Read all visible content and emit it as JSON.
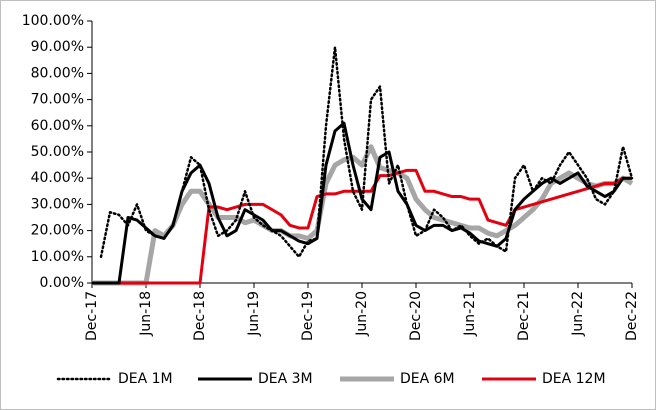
{
  "chart_data": {
    "type": "line",
    "x": [
      "2017-12",
      "2018-01",
      "2018-02",
      "2018-03",
      "2018-04",
      "2018-05",
      "2018-06",
      "2018-07",
      "2018-08",
      "2018-09",
      "2018-10",
      "2018-11",
      "2018-12",
      "2019-01",
      "2019-02",
      "2019-03",
      "2019-04",
      "2019-05",
      "2019-06",
      "2019-07",
      "2019-08",
      "2019-09",
      "2019-10",
      "2019-11",
      "2019-12",
      "2020-01",
      "2020-02",
      "2020-03",
      "2020-04",
      "2020-05",
      "2020-06",
      "2020-07",
      "2020-08",
      "2020-09",
      "2020-10",
      "2020-11",
      "2020-12",
      "2021-01",
      "2021-02",
      "2021-03",
      "2021-04",
      "2021-05",
      "2021-06",
      "2021-07",
      "2021-08",
      "2021-09",
      "2021-10",
      "2021-11",
      "2021-12",
      "2022-01",
      "2022-02",
      "2022-03",
      "2022-04",
      "2022-05",
      "2022-06",
      "2022-07",
      "2022-08",
      "2022-09",
      "2022-10",
      "2022-11",
      "2022-12"
    ],
    "series": [
      {
        "name": "DEA 1M",
        "color": "#000000",
        "dash": "dotted",
        "width": 2.5,
        "values": [
          null,
          10,
          27,
          26,
          22,
          30,
          20,
          18,
          17,
          22,
          35,
          48,
          45,
          28,
          18,
          20,
          24,
          35,
          25,
          22,
          20,
          18,
          14,
          10,
          16,
          17,
          60,
          90,
          55,
          35,
          28,
          70,
          75,
          38,
          45,
          30,
          18,
          20,
          28,
          25,
          20,
          22,
          18,
          15,
          17,
          14,
          12,
          40,
          45,
          35,
          40,
          38,
          45,
          50,
          45,
          40,
          32,
          30,
          35,
          52,
          40
        ]
      },
      {
        "name": "DEA 3M",
        "color": "#000000",
        "dash": "solid",
        "width": 3,
        "values": [
          0,
          0,
          0,
          0,
          25,
          24,
          21,
          18,
          17,
          22,
          35,
          42,
          45,
          38,
          25,
          18,
          20,
          28,
          26,
          24,
          20,
          20,
          18,
          16,
          15,
          17,
          45,
          58,
          61,
          45,
          32,
          28,
          48,
          50,
          35,
          30,
          22,
          20,
          22,
          22,
          20,
          21,
          19,
          16,
          15,
          14,
          17,
          28,
          32,
          35,
          38,
          40,
          38,
          40,
          42,
          37,
          35,
          33,
          35,
          40,
          40
        ]
      },
      {
        "name": "DEA 6M",
        "color": "#a6a6a6",
        "dash": "solid",
        "width": 5,
        "values": [
          0,
          0,
          0,
          0,
          0,
          0,
          0,
          20,
          18,
          22,
          30,
          35,
          35,
          30,
          25,
          25,
          25,
          23,
          24,
          22,
          20,
          20,
          18,
          18,
          17,
          20,
          38,
          45,
          47,
          48,
          45,
          52,
          44,
          43,
          42,
          40,
          32,
          28,
          25,
          24,
          23,
          22,
          21,
          21,
          19,
          18,
          20,
          22,
          25,
          28,
          32,
          38,
          40,
          42,
          40,
          38,
          37,
          38,
          38,
          40,
          38
        ]
      },
      {
        "name": "DEA 12M",
        "color": "#e3000f",
        "dash": "solid",
        "width": 3,
        "values": [
          0,
          0,
          0,
          0,
          0,
          0,
          0,
          0,
          0,
          0,
          0,
          0,
          0,
          29,
          29,
          28,
          29,
          30,
          30,
          30,
          28,
          26,
          22,
          21,
          21,
          33,
          34,
          34,
          35,
          35,
          35,
          35,
          41,
          41,
          42,
          43,
          43,
          35,
          35,
          34,
          33,
          33,
          32,
          32,
          24,
          23,
          22,
          28,
          29,
          30,
          31,
          32,
          33,
          34,
          35,
          36,
          37,
          38,
          38,
          40,
          40
        ]
      }
    ],
    "xticks": [
      {
        "value": "2017-12",
        "label": "Dec-17"
      },
      {
        "value": "2018-06",
        "label": "Jun-18"
      },
      {
        "value": "2018-12",
        "label": "Dec-18"
      },
      {
        "value": "2019-06",
        "label": "Jun-19"
      },
      {
        "value": "2019-12",
        "label": "Dec-19"
      },
      {
        "value": "2020-06",
        "label": "Jun-20"
      },
      {
        "value": "2020-12",
        "label": "Dec-20"
      },
      {
        "value": "2021-06",
        "label": "Jun-21"
      },
      {
        "value": "2021-12",
        "label": "Dec-21"
      },
      {
        "value": "2022-06",
        "label": "Jun-22"
      },
      {
        "value": "2022-12",
        "label": "Dec-22"
      }
    ],
    "ylim": [
      0,
      100
    ],
    "yticks": [
      {
        "value": 0,
        "label": "0.00%"
      },
      {
        "value": 10,
        "label": "10.00%"
      },
      {
        "value": 20,
        "label": "20.00%"
      },
      {
        "value": 30,
        "label": "30.00%"
      },
      {
        "value": 40,
        "label": "40.00%"
      },
      {
        "value": 50,
        "label": "50.00%"
      },
      {
        "value": 60,
        "label": "60.00%"
      },
      {
        "value": 70,
        "label": "70.00%"
      },
      {
        "value": 80,
        "label": "80.00%"
      },
      {
        "value": 90,
        "label": "90.00%"
      },
      {
        "value": 100,
        "label": "100.00%"
      }
    ],
    "grid": false,
    "legend": "bottom"
  }
}
